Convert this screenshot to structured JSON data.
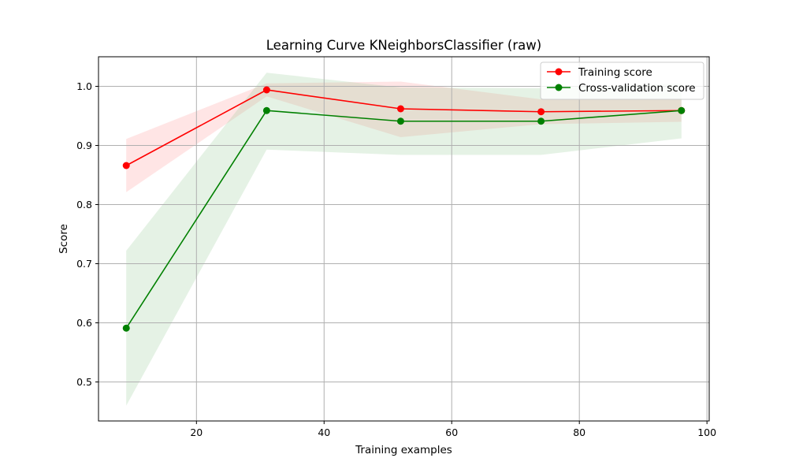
{
  "chart_data": {
    "type": "line",
    "title": "Learning Curve KNeighborsClassifier (raw)",
    "xlabel": "Training examples",
    "ylabel": "Score",
    "xlim": [
      4.65,
      100.35
    ],
    "ylim": [
      0.434,
      1.05
    ],
    "xticks": [
      20,
      40,
      60,
      80,
      100
    ],
    "yticks": [
      0.5,
      0.6,
      0.7,
      0.8,
      0.9,
      1.0
    ],
    "xtick_labels": [
      "20",
      "40",
      "60",
      "80",
      "100"
    ],
    "ytick_labels": [
      "0.5",
      "0.6",
      "0.7",
      "0.8",
      "0.9",
      "1.0"
    ],
    "grid": true,
    "legend_position": "upper-right",
    "x": [
      9,
      31,
      52,
      74,
      96
    ],
    "series": [
      {
        "name": "Training score",
        "color": "#ff0000",
        "band_color": "#ff9999",
        "values": [
          0.866,
          0.994,
          0.962,
          0.957,
          0.959
        ],
        "upper": [
          0.911,
          1.005,
          1.008,
          0.978,
          0.978
        ],
        "lower": [
          0.821,
          0.983,
          0.914,
          0.936,
          0.94
        ]
      },
      {
        "name": "Cross-validation score",
        "color": "#008000",
        "band_color": "#99cc99",
        "values": [
          0.591,
          0.959,
          0.941,
          0.941,
          0.959
        ],
        "upper": [
          0.722,
          1.023,
          0.998,
          0.997,
          1.005
        ],
        "lower": [
          0.46,
          0.893,
          0.884,
          0.884,
          0.912
        ]
      }
    ]
  }
}
